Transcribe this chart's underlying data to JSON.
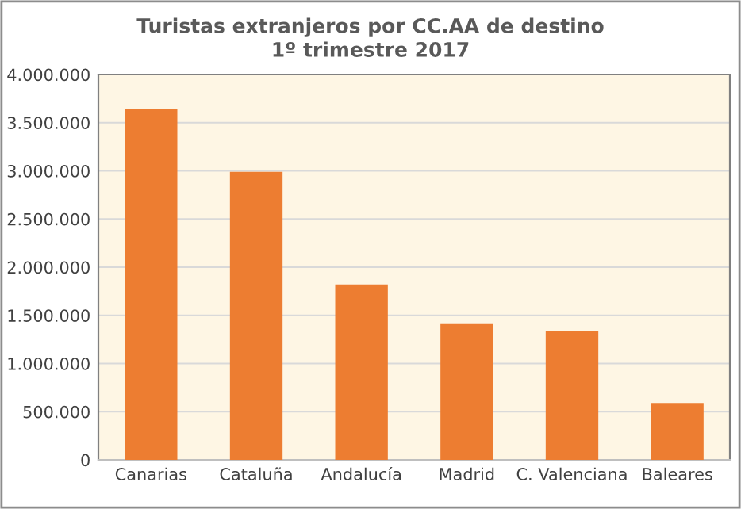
{
  "chart_data": {
    "type": "bar",
    "title": "Turistas extranjeros por CC.AA de destino\n1º trimestre 2017",
    "categories": [
      "Canarias",
      "Cataluña",
      "Andalucía",
      "Madrid",
      "C. Valenciana",
      "Baleares"
    ],
    "values": [
      3640000,
      2990000,
      1820000,
      1410000,
      1340000,
      590000
    ],
    "color": "#ed7d31",
    "ylim": [
      0,
      4000000
    ],
    "yticks": [
      {
        "value": 0,
        "label": "0"
      },
      {
        "value": 500000,
        "label": "500.000"
      },
      {
        "value": 1000000,
        "label": "1.000.000"
      },
      {
        "value": 1500000,
        "label": "1.500.000"
      },
      {
        "value": 2000000,
        "label": "2.000.000"
      },
      {
        "value": 2500000,
        "label": "2.500.000"
      },
      {
        "value": 3000000,
        "label": "3.000.000"
      },
      {
        "value": 3500000,
        "label": "3.500.000"
      },
      {
        "value": 4000000,
        "label": "4.000.000"
      }
    ],
    "grid": "y",
    "legend": false
  }
}
